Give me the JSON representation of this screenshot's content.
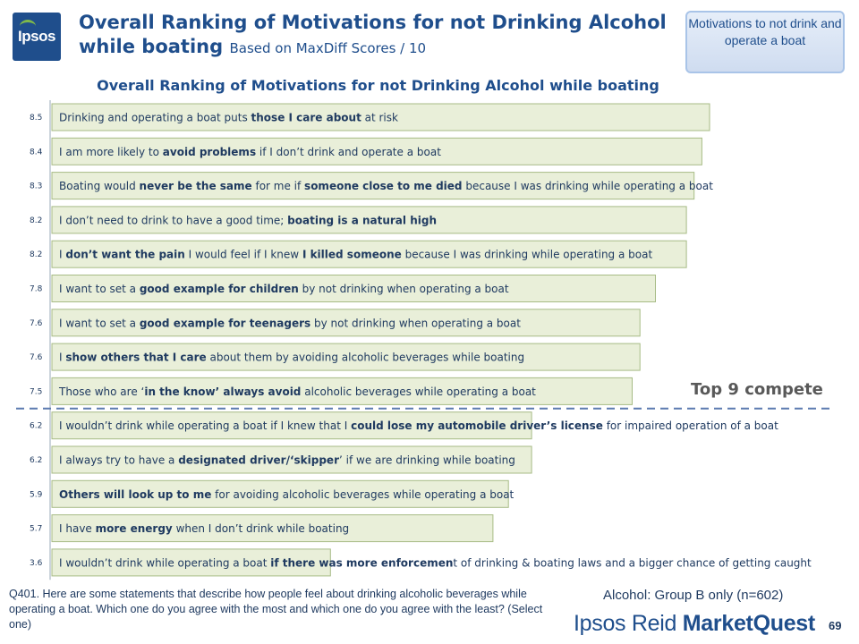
{
  "logo": {
    "text": "Ipsos"
  },
  "header": {
    "title": "Overall Ranking of Motivations for not Drinking Alcohol while boating",
    "subtitle": "Based on MaxDiff Scores / 10"
  },
  "callout": {
    "text": "Motivations to not drink and operate a boat"
  },
  "cutoff_label": "Top 9 compete",
  "question": "Q401. Here are some statements that describe how people feel about drinking alcoholic beverages while operating a boat. Which one do you agree with the most and which one do you agree with the least? (Select one)",
  "base": "Alcohol: Group B only (n=602)",
  "brand": {
    "part1": "Ipsos Reid",
    "part2": "MarketQuest"
  },
  "page_number": "69",
  "colors": {
    "bar_fill": "#e9efd9",
    "bar_stroke": "#a7bb85",
    "title": "#1f4e8c",
    "cutoff": "#5b7ab0"
  },
  "chart_data": {
    "type": "bar",
    "orientation": "horizontal",
    "title": "Overall Ranking of Motivations for not Drinking Alcohol while boating",
    "xlim": [
      0,
      10
    ],
    "cutoff_after_index": 8,
    "categories": [
      [
        [
          "Drinking and operating a boat puts ",
          false
        ],
        [
          "those I care about",
          true
        ],
        [
          " at risk",
          false
        ]
      ],
      [
        [
          "I am more likely to ",
          false
        ],
        [
          "avoid problems",
          true
        ],
        [
          " if I don’t drink and operate a boat",
          false
        ]
      ],
      [
        [
          "Boating would ",
          false
        ],
        [
          "never be the same",
          true
        ],
        [
          " for me if ",
          false
        ],
        [
          "someone close to me died",
          true
        ],
        [
          " because I was drinking while operating a boat",
          false
        ]
      ],
      [
        [
          "I don’t need to drink to have a good time; ",
          false
        ],
        [
          "boating is a natural high",
          true
        ]
      ],
      [
        [
          "I ",
          false
        ],
        [
          "don’t want the pain",
          true
        ],
        [
          " I would feel if I knew ",
          false
        ],
        [
          "I killed someone",
          true
        ],
        [
          " because I was drinking while operating a boat",
          false
        ]
      ],
      [
        [
          "I want to set a ",
          false
        ],
        [
          "good example for children",
          true
        ],
        [
          " by not drinking when operating a boat",
          false
        ]
      ],
      [
        [
          "I want to set a ",
          false
        ],
        [
          "good example for teenagers",
          true
        ],
        [
          " by not drinking when operating a boat",
          false
        ]
      ],
      [
        [
          "I ",
          false
        ],
        [
          "show others that I care",
          true
        ],
        [
          " about them by avoiding alcoholic beverages while boating",
          false
        ]
      ],
      [
        [
          "Those who are ‘",
          false
        ],
        [
          "in the know’ always avoid",
          true
        ],
        [
          " alcoholic beverages while operating a boat",
          false
        ]
      ],
      [
        [
          "I wouldn’t drink while operating a boat if I knew that I ",
          false
        ],
        [
          "could lose my automobile driver’s license",
          true
        ],
        [
          " for impaired operation of a boat",
          false
        ]
      ],
      [
        [
          "I always try to have a ",
          false
        ],
        [
          "designated driver/‘skipper",
          true
        ],
        [
          "’ if we are drinking while boating",
          false
        ]
      ],
      [
        [
          "Others will look up to me",
          true
        ],
        [
          " for avoiding alcoholic beverages while operating a boat",
          false
        ]
      ],
      [
        [
          "I have ",
          false
        ],
        [
          "more energy",
          true
        ],
        [
          " when I don’t drink while boating",
          false
        ]
      ],
      [
        [
          "I wouldn’t drink while operating a boat ",
          false
        ],
        [
          "if there was more enforcemen",
          true
        ],
        [
          "t of drinking & boating laws and a bigger chance of getting caught",
          false
        ]
      ]
    ],
    "values": [
      8.5,
      8.4,
      8.3,
      8.2,
      8.2,
      7.8,
      7.6,
      7.6,
      7.5,
      6.2,
      6.2,
      5.9,
      5.7,
      3.6
    ]
  }
}
